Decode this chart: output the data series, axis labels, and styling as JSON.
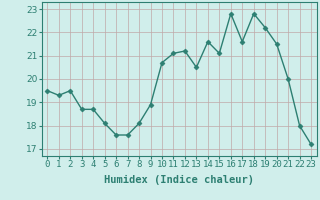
{
  "x": [
    0,
    1,
    2,
    3,
    4,
    5,
    6,
    7,
    8,
    9,
    10,
    11,
    12,
    13,
    14,
    15,
    16,
    17,
    18,
    19,
    20,
    21,
    22,
    23
  ],
  "y": [
    19.5,
    19.3,
    19.5,
    18.7,
    18.7,
    18.1,
    17.6,
    17.6,
    18.1,
    18.9,
    20.7,
    21.1,
    21.2,
    20.5,
    21.6,
    21.1,
    22.8,
    21.6,
    22.8,
    22.2,
    21.5,
    20.0,
    18.0,
    17.2
  ],
  "line_color": "#2d7f72",
  "marker": "D",
  "marker_size": 2.5,
  "line_width": 1.0,
  "bg_color": "#d0eeeb",
  "grid_color": "#c0a8a8",
  "xlabel": "Humidex (Indice chaleur)",
  "xlim": [
    -0.5,
    23.5
  ],
  "ylim": [
    16.7,
    23.3
  ],
  "yticks": [
    17,
    18,
    19,
    20,
    21,
    22,
    23
  ],
  "xticks": [
    0,
    1,
    2,
    3,
    4,
    5,
    6,
    7,
    8,
    9,
    10,
    11,
    12,
    13,
    14,
    15,
    16,
    17,
    18,
    19,
    20,
    21,
    22,
    23
  ],
  "xlabel_fontsize": 7.5,
  "tick_fontsize": 6.5,
  "tick_color": "#2d7f72",
  "spine_color": "#2d7f72",
  "label_color": "#2d7f72"
}
